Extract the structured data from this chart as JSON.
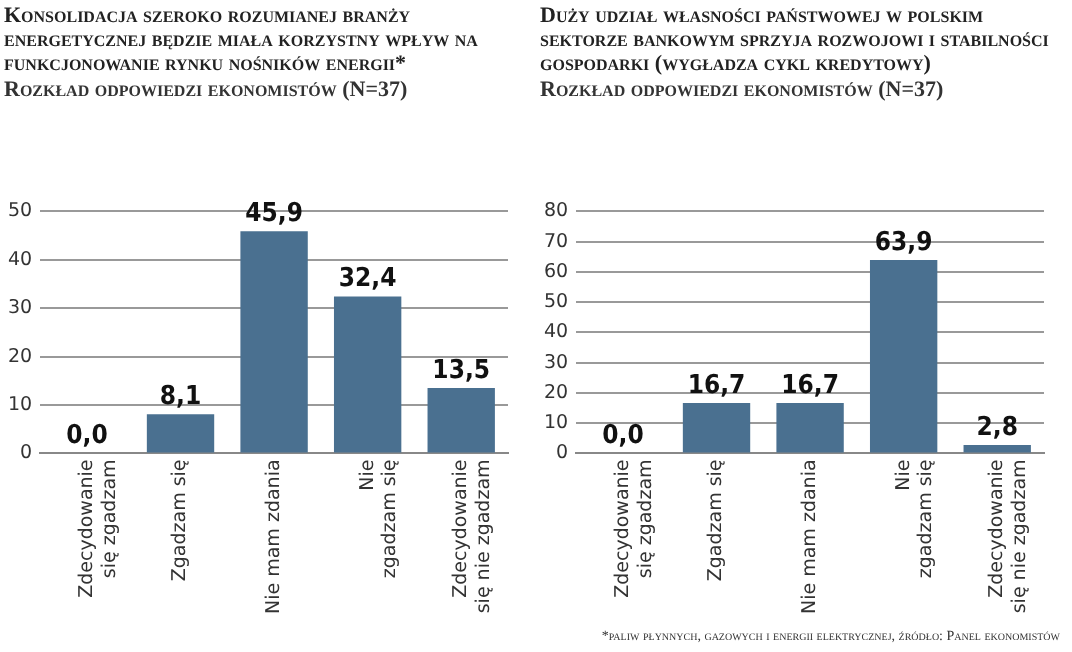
{
  "chart_data": [
    {
      "type": "bar",
      "title": "Konsolidacja szeroko rozumianej branży energetycznej będzie miała korzystny wpływ na funkcjonowanie rynku nośników energii*",
      "subtitle": "Rozkład odpowiedzi ekonomistów (N=37)",
      "categories": [
        "Zdecydowanie się zgadzam",
        "Zgadzam się",
        "Nie mam zdania",
        "Nie zgadzam się",
        "Zdecydowanie się nie zgadzam"
      ],
      "values": [
        0.0,
        8.1,
        45.9,
        32.4,
        13.5
      ],
      "value_labels": [
        "0,0",
        "8,1",
        "45,9",
        "32,4",
        "13,5"
      ],
      "color": "#4a7090",
      "ylim": [
        0,
        50
      ],
      "yticks": [
        0,
        10,
        20,
        30,
        40,
        50
      ],
      "grid": "y",
      "legend": false
    },
    {
      "type": "bar",
      "title": "Duży udział własności państwowej w polskim sektorze bankowym sprzyja rozwojowi i stabilności gospodarki (wygładza cykl kredytowy)",
      "subtitle": "Rozkład odpowiedzi ekonomistów (N=37)",
      "categories": [
        "Zdecydowanie się zgadzam",
        "Zgadzam się",
        "Nie mam zdania",
        "Nie zgadzam się",
        "Zdecydowanie się nie zgadzam"
      ],
      "values": [
        0.0,
        16.7,
        16.7,
        63.9,
        2.8
      ],
      "value_labels": [
        "0,0",
        "16,7",
        "16,7",
        "63,9",
        "2,8"
      ],
      "color": "#4a7090",
      "ylim": [
        0,
        80
      ],
      "yticks": [
        0,
        10,
        20,
        30,
        40,
        50,
        60,
        70,
        80
      ],
      "grid": "y",
      "legend": false,
      "annotations": [
        "*paliw płynnych, gazowych i energii elektrycznej, źródło: Panel ekonomistów"
      ]
    }
  ]
}
